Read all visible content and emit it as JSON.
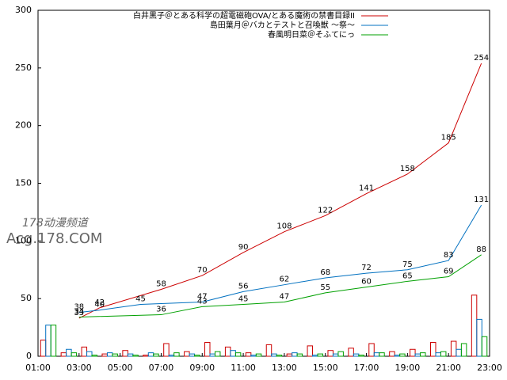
{
  "chart_data": {
    "type": "line",
    "xlim": [
      1,
      23
    ],
    "xticks": [
      {
        "value": 1,
        "label": "01:00"
      },
      {
        "value": 3,
        "label": "03:00"
      },
      {
        "value": 5,
        "label": "05:00"
      },
      {
        "value": 7,
        "label": "07:00"
      },
      {
        "value": 9,
        "label": "09:00"
      },
      {
        "value": 11,
        "label": "11:00"
      },
      {
        "value": 13,
        "label": "13:00"
      },
      {
        "value": 15,
        "label": "15:00"
      },
      {
        "value": 17,
        "label": "17:00"
      },
      {
        "value": 19,
        "label": "19:00"
      },
      {
        "value": 21,
        "label": "21:00"
      },
      {
        "value": 23,
        "label": "23:00"
      }
    ],
    "ylim": [
      0,
      300
    ],
    "yticks": [
      0,
      50,
      100,
      150,
      200,
      250,
      300
    ],
    "grid": false,
    "legend": "top-right",
    "series": [
      {
        "name": "白井黒子＠とある科学の超電磁砲OVA/とある魔術の禁書目録II",
        "color": "#cc0000",
        "x": [
          3,
          4,
          7,
          9,
          11,
          13,
          15,
          17,
          19,
          21,
          22.6
        ],
        "values": [
          33,
          42,
          58,
          70,
          90,
          108,
          122,
          141,
          158,
          185,
          254
        ]
      },
      {
        "name": "島田葉月＠バカとテストと召喚獣 ～祭～",
        "color": "#0070c0",
        "x": [
          3,
          4,
          6,
          9,
          11,
          13,
          15,
          17,
          19,
          21,
          22.6
        ],
        "values": [
          38,
          40,
          45,
          47,
          56,
          62,
          68,
          72,
          75,
          83,
          131
        ]
      },
      {
        "name": "春風明日菜＠そふてにっ",
        "color": "#00a000",
        "x": [
          3,
          7,
          9,
          11,
          13,
          15,
          17,
          19,
          21,
          22.6
        ],
        "values": [
          34,
          36,
          43,
          45,
          47,
          55,
          60,
          65,
          69,
          88
        ]
      }
    ],
    "bars": [
      {
        "color": "#cc0000",
        "values": [
          14,
          3,
          8,
          2,
          5,
          1,
          11,
          4,
          12,
          8,
          3,
          10,
          2,
          9,
          5,
          7,
          11,
          4,
          6,
          12,
          13,
          53
        ]
      },
      {
        "color": "#0070c0",
        "values": [
          27,
          6,
          4,
          3,
          2,
          3,
          1,
          2,
          2,
          5,
          1,
          2,
          3,
          1,
          2,
          2,
          3,
          1,
          2,
          3,
          6,
          32
        ]
      },
      {
        "color": "#00a000",
        "values": [
          27,
          3,
          1,
          2,
          1,
          2,
          3,
          1,
          4,
          3,
          2,
          1,
          2,
          2,
          4,
          1,
          3,
          2,
          3,
          4,
          11,
          17
        ]
      }
    ]
  },
  "watermark": {
    "line1": "178动漫频道",
    "line2": "Acg.178.COM"
  }
}
